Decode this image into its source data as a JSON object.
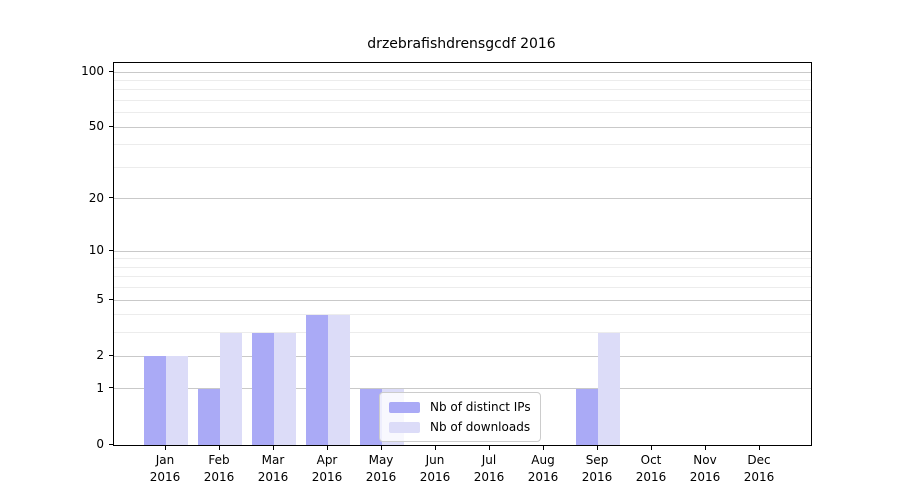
{
  "title": "drzebrafishdrensgcdf 2016",
  "chart_data": {
    "type": "bar",
    "title": "drzebrafishdrensgcdf 2016",
    "categories": [
      "Jan",
      "Feb",
      "Mar",
      "Apr",
      "May",
      "Jun",
      "Jul",
      "Aug",
      "Sep",
      "Oct",
      "Nov",
      "Dec"
    ],
    "x_year_line": "2016",
    "series": [
      {
        "name": "Nb of distinct IPs",
        "color": "#aaaaf6",
        "values": [
          2,
          1,
          3,
          4,
          1,
          0,
          0,
          0,
          1,
          0,
          0,
          0
        ]
      },
      {
        "name": "Nb of downloads",
        "color": "#dcdcf8",
        "values": [
          2,
          3,
          3,
          4,
          1,
          0,
          0,
          0,
          3,
          0,
          0,
          0
        ]
      }
    ],
    "yscale": "log1p",
    "ylim": [
      0,
      112
    ],
    "y_major_ticks": [
      0,
      1,
      2,
      5,
      10,
      20,
      50,
      100
    ],
    "y_minor_gridlines": [
      3,
      4,
      6,
      7,
      8,
      9,
      30,
      40,
      60,
      70,
      80,
      90
    ],
    "grid": "horizontal",
    "legend_position": "inside-lower-center",
    "colors": {
      "major_grid": "#c9c9c9",
      "minor_grid": "#ececec",
      "spine": "#000000",
      "background": "#ffffff",
      "text": "#000000"
    }
  }
}
